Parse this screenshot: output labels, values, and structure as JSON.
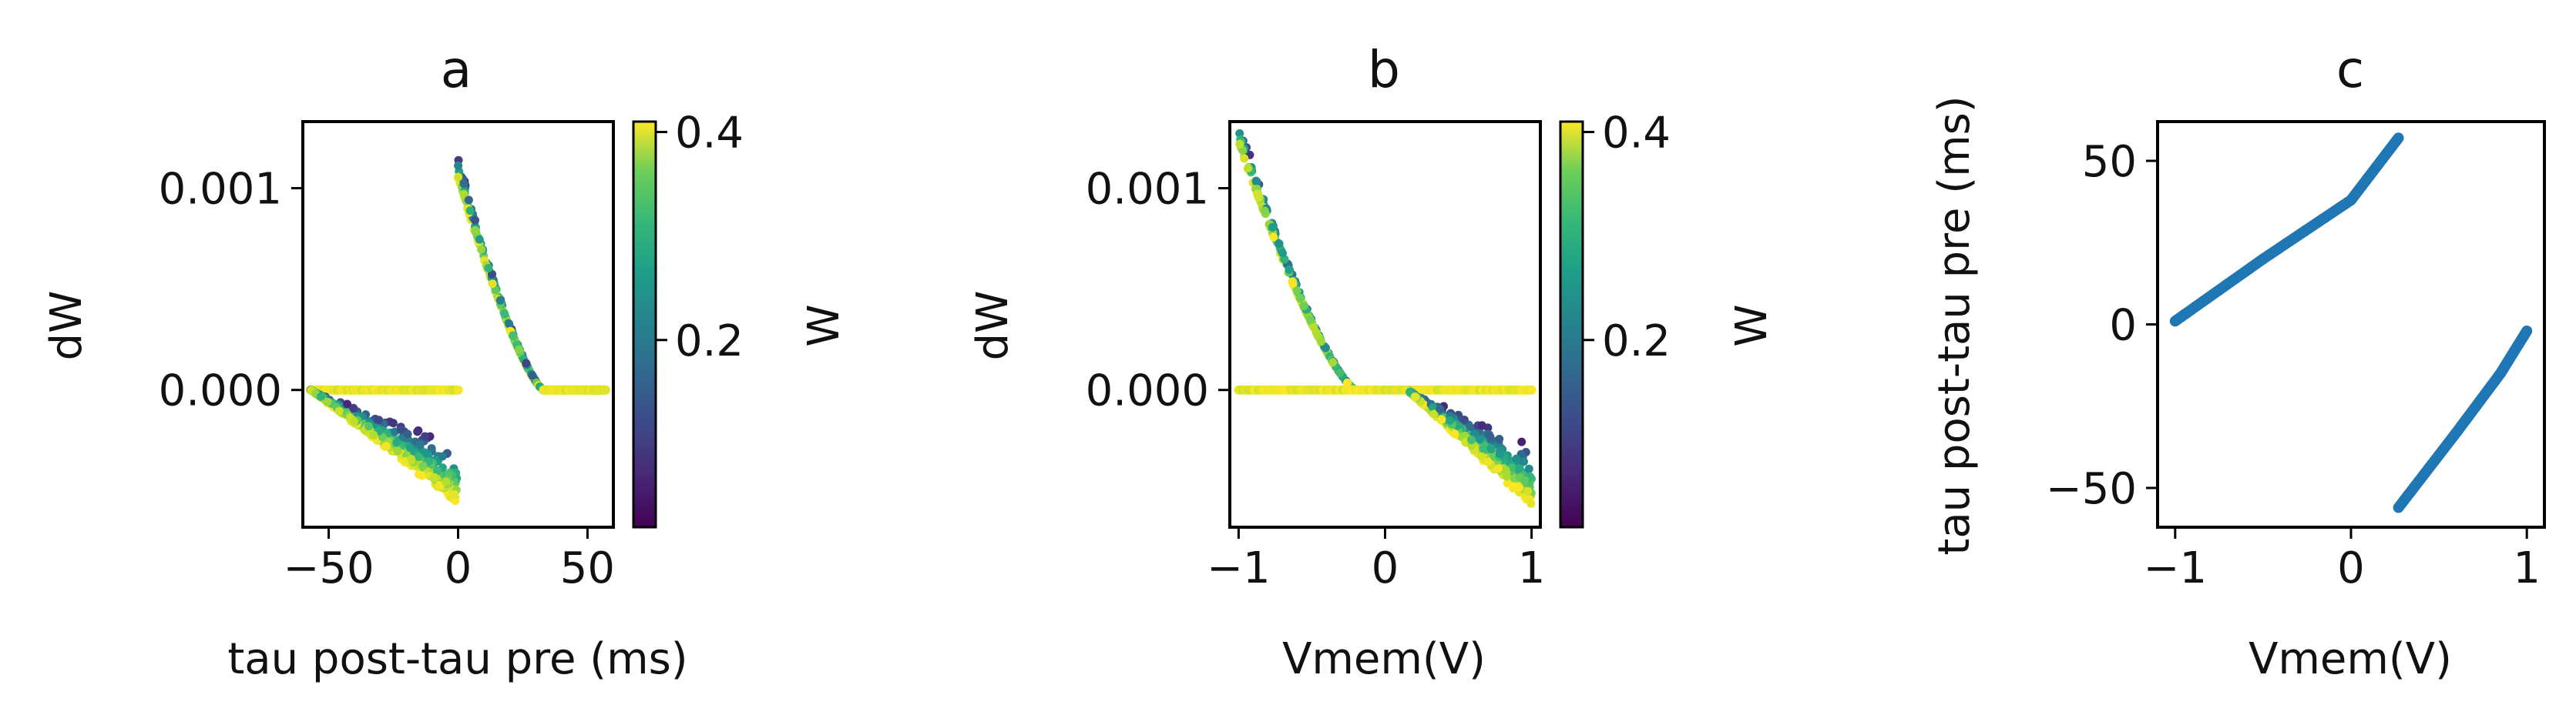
{
  "chart_data": [
    {
      "type": "scatter",
      "title": "a",
      "xlabel": "tau post-tau pre (ms)",
      "ylabel": "dW",
      "xlim": [
        -60,
        60
      ],
      "ylim": [
        -0.00068,
        0.00133
      ],
      "xticks": [
        -50,
        0,
        50
      ],
      "xtick_labels": [
        "−50",
        "0",
        "50"
      ],
      "yticks": [
        0.0,
        0.001
      ],
      "ytick_labels": [
        "0.000",
        "0.001"
      ],
      "colorbar": {
        "label": "W",
        "range": [
          0.02,
          0.41
        ],
        "ticks": [
          0.2,
          0.4
        ],
        "tick_labels": [
          "0.2",
          "0.4"
        ],
        "colormap": "viridis"
      },
      "series": [
        {
          "branch": "ltp-curve",
          "x_range": [
            0,
            33
          ],
          "y_at_start": 0.00105,
          "y_at_end": 0.0,
          "w_range": [
            0.05,
            0.41
          ]
        },
        {
          "branch": "ltp-flat",
          "x_range": [
            33,
            57
          ],
          "y": 0.0
        },
        {
          "branch": "ltd-flat",
          "x_range": [
            -57,
            0
          ],
          "y": 0.0
        },
        {
          "branch": "ltd-wedge",
          "x_range": [
            -57,
            0
          ],
          "y_at_start": 0.0,
          "y_at_end_min": -0.00057,
          "y_at_end_max": -0.00028,
          "w_range": [
            0.05,
            0.41
          ]
        }
      ]
    },
    {
      "type": "scatter",
      "title": "b",
      "xlabel": "Vmem(V)",
      "ylabel": "dW",
      "xlim": [
        -1.06,
        1.06
      ],
      "ylim": [
        -0.00068,
        0.00133
      ],
      "xticks": [
        -1,
        0,
        1
      ],
      "xtick_labels": [
        "−1",
        "0",
        "1"
      ],
      "yticks": [
        0.0,
        0.001
      ],
      "ytick_labels": [
        "0.000",
        "0.001"
      ],
      "colorbar": {
        "label": "W",
        "range": [
          0.02,
          0.41
        ],
        "ticks": [
          0.2,
          0.4
        ],
        "tick_labels": [
          "0.2",
          "0.4"
        ],
        "colormap": "viridis"
      },
      "series": [
        {
          "branch": "ltp-curve",
          "x_range": [
            -1,
            -0.2
          ],
          "y_at_start": 0.00122,
          "y_at_end": 0.0,
          "w_range": [
            0.05,
            0.41
          ]
        },
        {
          "branch": "flat",
          "x_range": [
            -1,
            1
          ],
          "y": 0.0
        },
        {
          "branch": "ltd-wedge",
          "x_range": [
            0.15,
            1
          ],
          "y_at_start": 0.0,
          "y_at_end_min": -0.00058,
          "y_at_end_max": -0.00028,
          "w_range": [
            0.05,
            0.41
          ]
        }
      ]
    },
    {
      "type": "scatter",
      "title": "c",
      "xlabel": "Vmem(V)",
      "ylabel": "tau post-tau pre (ms)",
      "xlim": [
        -1.1,
        1.1
      ],
      "ylim": [
        -62,
        62
      ],
      "xticks": [
        -1,
        0,
        1
      ],
      "xtick_labels": [
        "−1",
        "0",
        "1"
      ],
      "yticks": [
        -50,
        0,
        50
      ],
      "ytick_labels": [
        "−50",
        "0",
        "50"
      ],
      "color": "#1f77b4",
      "series": [
        {
          "branch": "upper",
          "points": [
            [
              -1.0,
              1
            ],
            [
              -0.5,
              20
            ],
            [
              0.0,
              38
            ],
            [
              0.27,
              57
            ]
          ]
        },
        {
          "branch": "lower",
          "points": [
            [
              0.27,
              -56
            ],
            [
              0.6,
              -33
            ],
            [
              0.85,
              -15
            ],
            [
              1.0,
              -2
            ]
          ]
        }
      ]
    }
  ]
}
